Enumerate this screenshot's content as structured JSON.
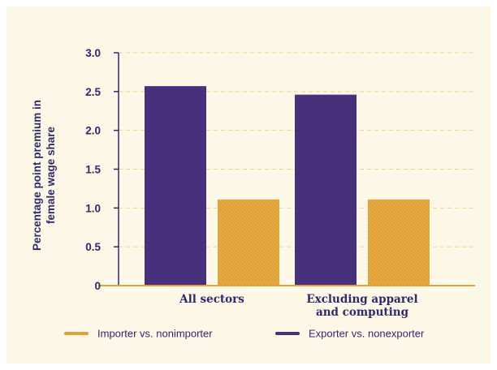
{
  "chart_data": {
    "type": "bar",
    "categories": [
      "All sectors",
      "Excluding apparel\nand computing"
    ],
    "series": [
      {
        "name": "Exporter vs. nonexporter",
        "values": [
          2.57,
          2.46
        ],
        "color": "#47317c"
      },
      {
        "name": "Importer vs. nonimporter",
        "values": [
          1.11,
          1.11
        ],
        "color": "#e0a236"
      }
    ],
    "ylabel": "Percentage point premium in\nfemale wage share",
    "xlabel": "",
    "ylim": [
      0,
      3.0
    ],
    "yticks": [
      "0",
      "0.5",
      "1.0",
      "1.5",
      "2.0",
      "2.5",
      "3.0"
    ],
    "ytick_values": [
      0,
      0.5,
      1.0,
      1.5,
      2.0,
      2.5,
      3.0
    ],
    "grid": "horizontal dashed",
    "legend": {
      "placement": "bottom",
      "order": [
        "Importer vs. nonimporter",
        "Exporter vs. nonexporter"
      ]
    },
    "colors": {
      "background": "#fcf7e6",
      "axis": "#e0a236",
      "grid": "#f3d58a",
      "text": "#2f2a6b"
    }
  }
}
